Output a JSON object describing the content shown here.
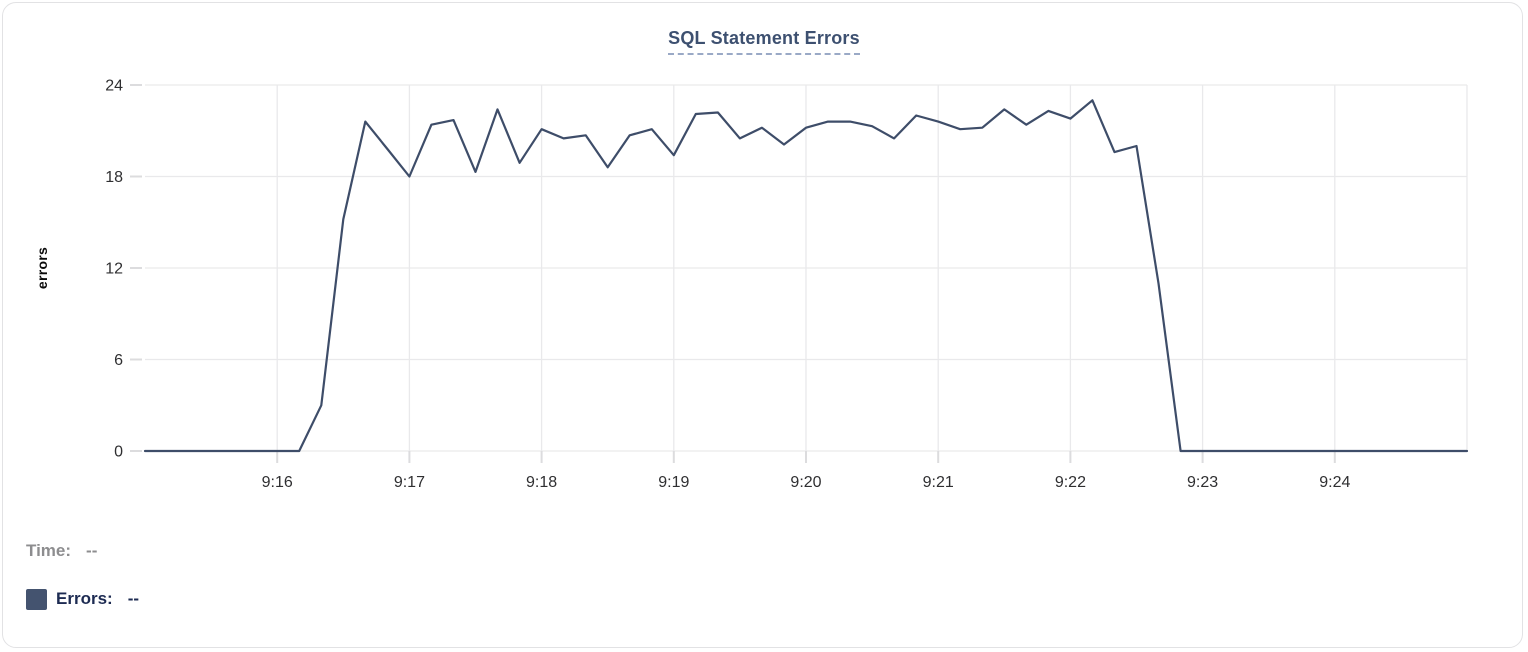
{
  "chart": {
    "title": "SQL Statement Errors"
  },
  "chart_data": {
    "type": "line",
    "title": "SQL Statement Errors",
    "xlabel": "",
    "ylabel": "errors",
    "ylim": [
      0,
      24
    ],
    "yticks": [
      0,
      6,
      12,
      18,
      24
    ],
    "xticklabels": [
      "9:16",
      "9:17",
      "9:18",
      "9:19",
      "9:20",
      "9:21",
      "9:22",
      "9:23",
      "9:24"
    ],
    "x_range": [
      "9:15:00",
      "9:25:00"
    ],
    "x_step_seconds": 10,
    "grid": true,
    "legend_position": "bottom-left",
    "series": [
      {
        "name": "Errors",
        "color": "#3e4d69",
        "values": [
          0,
          0,
          0,
          0,
          0,
          0,
          0,
          0,
          3,
          15.2,
          21.6,
          19.8,
          18,
          21.4,
          21.7,
          18.3,
          22.4,
          18.9,
          21.1,
          20.5,
          20.7,
          18.6,
          20.7,
          21.1,
          19.4,
          22.1,
          22.2,
          20.5,
          21.2,
          20.1,
          21.2,
          21.6,
          21.6,
          21.3,
          20.5,
          22,
          21.6,
          21.1,
          21.2,
          22.4,
          21.4,
          22.3,
          21.8,
          23,
          19.6,
          20,
          11,
          0,
          0,
          0,
          0,
          0,
          0,
          0,
          0,
          0,
          0,
          0,
          0,
          0,
          0
        ]
      }
    ]
  },
  "legend": {
    "time_label": "Time:",
    "time_value": "--",
    "errors_label": "Errors:",
    "errors_value": "--",
    "swatch_color": "#44536f"
  },
  "colors": {
    "series_line": "#3e4d69",
    "title_text": "#3d5070",
    "title_underline": "#9aa9c6",
    "gridline": "#e9e9eb",
    "tick": "#dcdcde",
    "axis_text": "#2f2f31",
    "legend_muted": "#8d8d8f",
    "legend_dark": "#1d2b52",
    "card_border": "#e2e2e4"
  }
}
